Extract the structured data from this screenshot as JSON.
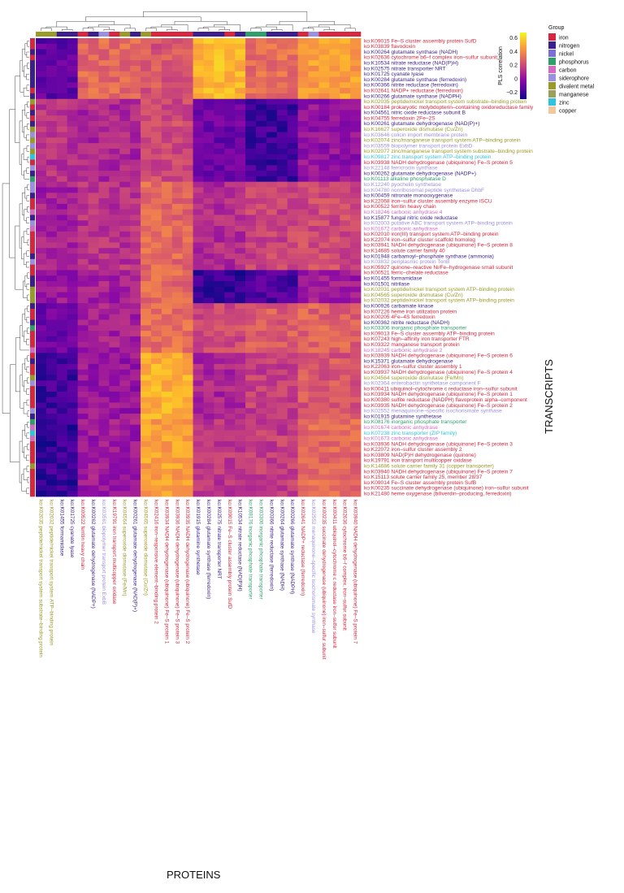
{
  "chart_data": {
    "type": "heatmap",
    "title": "",
    "xlabel": "PROTEINS",
    "ylabel": "TRANSCRIPTS",
    "colorbar": {
      "label": "PLS correlation",
      "ticks": [
        0.6,
        0.4,
        0.2,
        0.0,
        -0.2
      ],
      "tick_labels": [
        "0.6",
        "0.4",
        "0.2",
        "0",
        "−0.2"
      ],
      "range": [
        -0.3,
        0.68
      ]
    },
    "legend": {
      "title": "Group",
      "items": [
        {
          "name": "iron",
          "color": "#d7263d"
        },
        {
          "name": "nitrogen",
          "color": "#3b1f8c"
        },
        {
          "name": "nickel",
          "color": "#7b6fd6"
        },
        {
          "name": "phosphorus",
          "color": "#2e9f6b"
        },
        {
          "name": "carbon",
          "color": "#d46ac2"
        },
        {
          "name": "siderophore",
          "color": "#9b8fe0"
        },
        {
          "name": "divalent metal",
          "color": "#9a9a2a"
        },
        {
          "name": "manganese",
          "color": "#9aa05a"
        },
        {
          "name": "zinc",
          "color": "#2ec4e0"
        },
        {
          "name": "copper",
          "color": "#f2c79a"
        }
      ]
    },
    "rows": [
      {
        "label": "ko:K09015 Fe–S cluster assembly protein SufD",
        "group": "iron",
        "cluster": 0
      },
      {
        "label": "ko:K03839 flavodoxin",
        "group": "iron",
        "cluster": 0
      },
      {
        "label": "ko:K00264 glutamate synthase (NADH)",
        "group": "nitrogen",
        "cluster": 0
      },
      {
        "label": "ko:K02636 cytochrome b6–f complex iron–sulfur subunit",
        "group": "iron",
        "cluster": 0
      },
      {
        "label": "ko:K10534 nitrate reductase (NAD(P)H)",
        "group": "nitrogen",
        "cluster": 0
      },
      {
        "label": "ko:K02575 nitrate transporter NRT",
        "group": "nitrogen",
        "cluster": 0
      },
      {
        "label": "ko:K01725 cyanate lyase",
        "group": "nitrogen",
        "cluster": 0
      },
      {
        "label": "ko:K00284 glutamate synthase (ferredoxin)",
        "group": "nitrogen",
        "cluster": 0
      },
      {
        "label": "ko:K00366 nitrite reductase (ferredoxin)",
        "group": "nitrogen",
        "cluster": 0
      },
      {
        "label": "ko:K02641 NADP+ reductase (ferredoxin)",
        "group": "iron",
        "cluster": 0
      },
      {
        "label": "ko:K00266 glutamate synthase (NADPH)",
        "group": "nitrogen",
        "cluster": 0
      },
      {
        "label": "ko:K02035 peptide/nickel transport system substrate–binding protein",
        "group": "divalent metal",
        "cluster": 1
      },
      {
        "label": "ko:K00184 prokaryotic molybdopterin–containing oxidoreductase family",
        "group": "iron",
        "cluster": 1
      },
      {
        "label": "ko:K04561 nitric oxide reductase subunit B",
        "group": "nitrogen",
        "cluster": 1
      },
      {
        "label": "ko:K04755 ferredoxin 2Fe–2S",
        "group": "iron",
        "cluster": 1
      },
      {
        "label": "ko:K00261 glutamate dehydrogenase (NAD(P)+)",
        "group": "nitrogen",
        "cluster": 1
      },
      {
        "label": "ko:K16627 superoxide dismutase (Cu/Zn)",
        "group": "divalent metal",
        "cluster": 1
      },
      {
        "label": "ko:K03646 colicin import membrane protein",
        "group": "siderophore",
        "cluster": 1
      },
      {
        "label": "ko:K02074 zinc/manganese transport system ATP–binding protein",
        "group": "divalent metal",
        "cluster": 1
      },
      {
        "label": "ko:K03559 biopolymer transport protein ExbD",
        "group": "siderophore",
        "cluster": 1
      },
      {
        "label": "ko:K02077 zinc/manganese transport system substrate–binding protein",
        "group": "divalent metal",
        "cluster": 1
      },
      {
        "label": "ko:K09817 zinc transport system ATP–binding protein",
        "group": "zinc",
        "cluster": 1
      },
      {
        "label": "ko:K03938 NADH dehydrogenase (ubiquinone) Fe–S protein 5",
        "group": "iron",
        "cluster": 1
      },
      {
        "label": "ko:K22148 ferricrocin synthase",
        "group": "siderophore",
        "cluster": 1
      },
      {
        "label": "ko:K00262 glutamate dehydrogenase (NADP+)",
        "group": "nitrogen",
        "cluster": 1
      },
      {
        "label": "ko:K01113 alkaline phosphatase D",
        "group": "phosphorus",
        "cluster": 1
      },
      {
        "label": "ko:K12240 pyochelin synthetase",
        "group": "siderophore",
        "cluster": 2
      },
      {
        "label": "ko:K04780 nonribosomal peptide synthetase DhbF",
        "group": "siderophore",
        "cluster": 2
      },
      {
        "label": "ko:K00459 nitronate monooxygenase",
        "group": "nitrogen",
        "cluster": 2
      },
      {
        "label": "ko:K22068 iron–sulfur cluster assembly enzyme ISCU",
        "group": "iron",
        "cluster": 2
      },
      {
        "label": "ko:K00522 ferritin heavy chain",
        "group": "iron",
        "cluster": 2
      },
      {
        "label": "ko:K18246 carbonic anhydrase 4",
        "group": "carbon",
        "cluster": 2
      },
      {
        "label": "ko:K15877 fungal nitric oxide reductase",
        "group": "nitrogen",
        "cluster": 2
      },
      {
        "label": "ko:K02003 putative ABC transport system ATP–binding protein",
        "group": "siderophore",
        "cluster": 2
      },
      {
        "label": "ko:K01672 carbonic anhydrase",
        "group": "carbon",
        "cluster": 2
      },
      {
        "label": "ko:K02010 iron(III) transport system ATP–binding protein",
        "group": "iron",
        "cluster": 2
      },
      {
        "label": "ko:K22074 iron–sulfur cluster scaffold homolog",
        "group": "iron",
        "cluster": 2
      },
      {
        "label": "ko:K03941 NADH dehydrogenase (ubiquinone) Fe–S protein 8",
        "group": "iron",
        "cluster": 2
      },
      {
        "label": "ko:K14685 solute carrier family 40",
        "group": "iron",
        "cluster": 2
      },
      {
        "label": "ko:K01948 carbamoyl–phosphate synthase (ammonia)",
        "group": "nitrogen",
        "cluster": 2
      },
      {
        "label": "ko:K03832 periplasmic protein TonB",
        "group": "siderophore",
        "cluster": 2
      },
      {
        "label": "ko:K05927 quinone–reactive Ni/Fe–hydrogenase small subunit",
        "group": "iron",
        "cluster": 2
      },
      {
        "label": "ko:K00521 ferric–chelate reductase",
        "group": "iron",
        "cluster": 3
      },
      {
        "label": "ko:K01455 formamidase",
        "group": "nitrogen",
        "cluster": 3
      },
      {
        "label": "ko:K01501 nitrilase",
        "group": "nitrogen",
        "cluster": 3
      },
      {
        "label": "ko:K02031 peptide/nickel transport system ATP–binding protein",
        "group": "divalent metal",
        "cluster": 3
      },
      {
        "label": "ko:K04565 superoxide dismutase (Cu/Zn)",
        "group": "divalent metal",
        "cluster": 3
      },
      {
        "label": "ko:K02032 peptide/nickel transport system ATP–binding protein",
        "group": "divalent metal",
        "cluster": 3
      },
      {
        "label": "ko:K00926 carbamate kinase",
        "group": "nitrogen",
        "cluster": 4
      },
      {
        "label": "ko:K07226 heme iron utilization protein",
        "group": "iron",
        "cluster": 4
      },
      {
        "label": "ko:K00205 4Fe–4S ferredoxin",
        "group": "iron",
        "cluster": 4
      },
      {
        "label": "ko:K00362 nitrite reductase (NADH)",
        "group": "nitrogen",
        "cluster": 4
      },
      {
        "label": "ko:K03306 inorganic phosphate transporter",
        "group": "phosphorus",
        "cluster": 4
      },
      {
        "label": "ko:K09013 Fe–S cluster assembly ATP–binding protein",
        "group": "iron",
        "cluster": 4
      },
      {
        "label": "ko:K07243 high–affinity iron transporter FTR",
        "group": "iron",
        "cluster": 4
      },
      {
        "label": "ko:K03322 manganese transport protein",
        "group": "iron",
        "cluster": 4
      },
      {
        "label": "ko:K18245 carbonic anhydrase 2",
        "group": "carbon",
        "cluster": 4
      },
      {
        "label": "ko:K03939 NADH dehydrogenase (ubiquinone) Fe–S protein 6",
        "group": "iron",
        "cluster": 5
      },
      {
        "label": "ko:K15371 glutamate dehydrogenase",
        "group": "nitrogen",
        "cluster": 5
      },
      {
        "label": "ko:K22063 iron–sulfur cluster assembly 1",
        "group": "iron",
        "cluster": 5
      },
      {
        "label": "ko:K03937 NADH dehydrogenase (ubiquinone) Fe–S protein 4",
        "group": "iron",
        "cluster": 5
      },
      {
        "label": "ko:K04564 superoxide dismutase (Fe/Mn)",
        "group": "divalent metal",
        "cluster": 5
      },
      {
        "label": "ko:K02364 enterobactin synthetase component F",
        "group": "siderophore",
        "cluster": 5
      },
      {
        "label": "ko:K00411 ubiquinol–cytochrome c reductase iron–sulfur subunit",
        "group": "iron",
        "cluster": 5
      },
      {
        "label": "ko:K03934 NADH dehydrogenase (ubiquinone) Fe–S protein 1",
        "group": "iron",
        "cluster": 5
      },
      {
        "label": "ko:K00380 sulfite reductase (NADPH) flavoprotein alpha–component",
        "group": "iron",
        "cluster": 5
      },
      {
        "label": "ko:K03935 NADH dehydrogenase (ubiquinone) Fe–S protein 2",
        "group": "iron",
        "cluster": 5
      },
      {
        "label": "ko:K02552 menaquinone–specific isochorismate synthase",
        "group": "siderophore",
        "cluster": 5
      },
      {
        "label": "ko:K01915 glutamine synthetase",
        "group": "nitrogen",
        "cluster": 5
      },
      {
        "label": "ko:K08176 inorganic phosphate transporter",
        "group": "phosphorus",
        "cluster": 6
      },
      {
        "label": "ko:K01674 carbonic anhydrase",
        "group": "carbon",
        "cluster": 6
      },
      {
        "label": "ko:K07238 zinc transporter (ZIP family)",
        "group": "zinc",
        "cluster": 6
      },
      {
        "label": "ko:K01673 carbonic anhydrase",
        "group": "carbon",
        "cluster": 6
      },
      {
        "label": "ko:K03936 NADH dehydrogenase (ubiquinone) Fe–S protein 3",
        "group": "iron",
        "cluster": 6
      },
      {
        "label": "ko:K22072 iron–sulfur cluster assembly 2",
        "group": "iron",
        "cluster": 6
      },
      {
        "label": "ko:K03809 NAD(P)H dehydrogenase (quinone)",
        "group": "iron",
        "cluster": 6
      },
      {
        "label": "ko:K19791 iron transport multicopper oxidase",
        "group": "iron",
        "cluster": 6
      },
      {
        "label": "ko:K14686 solute carrier family 31 (copper transporter)",
        "group": "divalent metal",
        "cluster": 6
      },
      {
        "label": "ko:K03940 NADH dehydrogenase (ubiquinone) Fe–S protein 7",
        "group": "iron",
        "cluster": 6
      },
      {
        "label": "ko:K15113 solute carrier family 25, member 28/37",
        "group": "iron",
        "cluster": 6
      },
      {
        "label": "ko:K09014 Fe–S cluster assembly protein SufB",
        "group": "iron",
        "cluster": 6
      },
      {
        "label": "ko:K00235 succinate dehydrogenase (ubiquinone) iron–sulfur subunit",
        "group": "iron",
        "cluster": 6
      },
      {
        "label": "ko:K21480 heme oxygenase (biliverdin–producing, ferredoxin)",
        "group": "iron",
        "cluster": 6
      }
    ],
    "columns": [
      {
        "label": "ko:K02035 peptide/nickel transport system substrate–binding protein",
        "group": "divalent metal",
        "cluster": 0
      },
      {
        "label": "ko:K02032 peptide/nickel transport system ATP–binding protein",
        "group": "divalent metal",
        "cluster": 0
      },
      {
        "label": "ko:K01455 formamidase",
        "group": "nitrogen",
        "cluster": 0
      },
      {
        "label": "ko:K01725 cyanate lyase",
        "group": "nitrogen",
        "cluster": 0
      },
      {
        "label": "ko:K00522 ferritin heavy chain",
        "group": "iron",
        "cluster": 1
      },
      {
        "label": "ko:K00262 glutamate dehydrogenase (NADP+)",
        "group": "nitrogen",
        "cluster": 1
      },
      {
        "label": "ko:K03561 biopolymer transport protein ExbB",
        "group": "siderophore",
        "cluster": 1
      },
      {
        "label": "ko:K19791 iron transport multicopper oxidase",
        "group": "iron",
        "cluster": 1
      },
      {
        "label": "ko:K04564 superoxide dismutase (Fe/Mn)",
        "group": "divalent metal",
        "cluster": 1
      },
      {
        "label": "ko:K00261 glutamate dehydrogenase (NAD(P)+)",
        "group": "nitrogen",
        "cluster": 1
      },
      {
        "label": "ko:K04565 superoxide dismutase (Cu/Zn)",
        "group": "divalent metal",
        "cluster": 2
      },
      {
        "label": "ko:K02416 iron–responsive element–binding protein 2",
        "group": "iron",
        "cluster": 2
      },
      {
        "label": "ko:K03934 NADH dehydrogenase (ubiquinone) Fe–S protein 1",
        "group": "iron",
        "cluster": 2
      },
      {
        "label": "ko:K03936 NADH dehydrogenase (ubiquinone) Fe–S protein 3",
        "group": "iron",
        "cluster": 2
      },
      {
        "label": "ko:K03935 NADH dehydrogenase (ubiquinone) Fe–S protein 2",
        "group": "iron",
        "cluster": 2
      },
      {
        "label": "ko:K01915 glutamine synthetase",
        "group": "nitrogen",
        "cluster": 3
      },
      {
        "label": "ko:K00284 glutamate synthase (ferredoxin)",
        "group": "nitrogen",
        "cluster": 3
      },
      {
        "label": "ko:K02575 nitrate transporter NRT",
        "group": "nitrogen",
        "cluster": 3
      },
      {
        "label": "ko:K09015 Fe–S cluster assembly protein SufD",
        "group": "iron",
        "cluster": 3
      },
      {
        "label": "ko:K10534 nitrate reductase (NAD(P)H)",
        "group": "nitrogen",
        "cluster": 3
      },
      {
        "label": "ko:K08176 inorganic phosphate transporter",
        "group": "phosphorus",
        "cluster": 4
      },
      {
        "label": "ko:K03306 inorganic phosphate transporter",
        "group": "phosphorus",
        "cluster": 4
      },
      {
        "label": "ko:K00366 nitrite reductase (ferredoxin)",
        "group": "nitrogen",
        "cluster": 4
      },
      {
        "label": "ko:K00264 glutamate synthase (NADH)",
        "group": "nitrogen",
        "cluster": 4
      },
      {
        "label": "ko:K00266 glutamate synthase (NADPH)",
        "group": "nitrogen",
        "cluster": 4
      },
      {
        "label": "ko:K02641 NADP+ reductase (ferredoxin)",
        "group": "iron",
        "cluster": 5
      },
      {
        "label": "ko:K02552 menaquinone–specific isochorismate synthase",
        "group": "siderophore",
        "cluster": 5
      },
      {
        "label": "ko:K00235 succinate dehydrogenase (ubiquinone) iron–sulfur subunit",
        "group": "iron",
        "cluster": 5
      },
      {
        "label": "ko:K00411 ubiquinol–cytochrome c reductase iron–sulfur subunit",
        "group": "iron",
        "cluster": 5
      },
      {
        "label": "ko:K02636 cytochrome b6–f complex, iron–sulfur subunit",
        "group": "iron",
        "cluster": 5
      },
      {
        "label": "ko:K03940 NADH dehydrogenase (ubiquinone) Fe–S protein 7",
        "group": "iron",
        "cluster": 5
      }
    ],
    "cluster_means": [
      [
        -0.12,
        0.3,
        0.24,
        0.52,
        0.32,
        0.46
      ],
      [
        0.12,
        0.08,
        0.2,
        -0.1,
        -0.2,
        0.0
      ],
      [
        0.06,
        0.12,
        0.3,
        0.1,
        0.18,
        0.2
      ],
      [
        0.02,
        0.06,
        0.3,
        -0.22,
        -0.16,
        0.04
      ],
      [
        -0.1,
        0.06,
        0.32,
        0.2,
        0.26,
        0.28
      ],
      [
        -0.2,
        0.02,
        0.5,
        0.08,
        0.16,
        0.24
      ],
      [
        -0.22,
        0.04,
        0.46,
        0.14,
        0.16,
        0.3
      ]
    ]
  }
}
